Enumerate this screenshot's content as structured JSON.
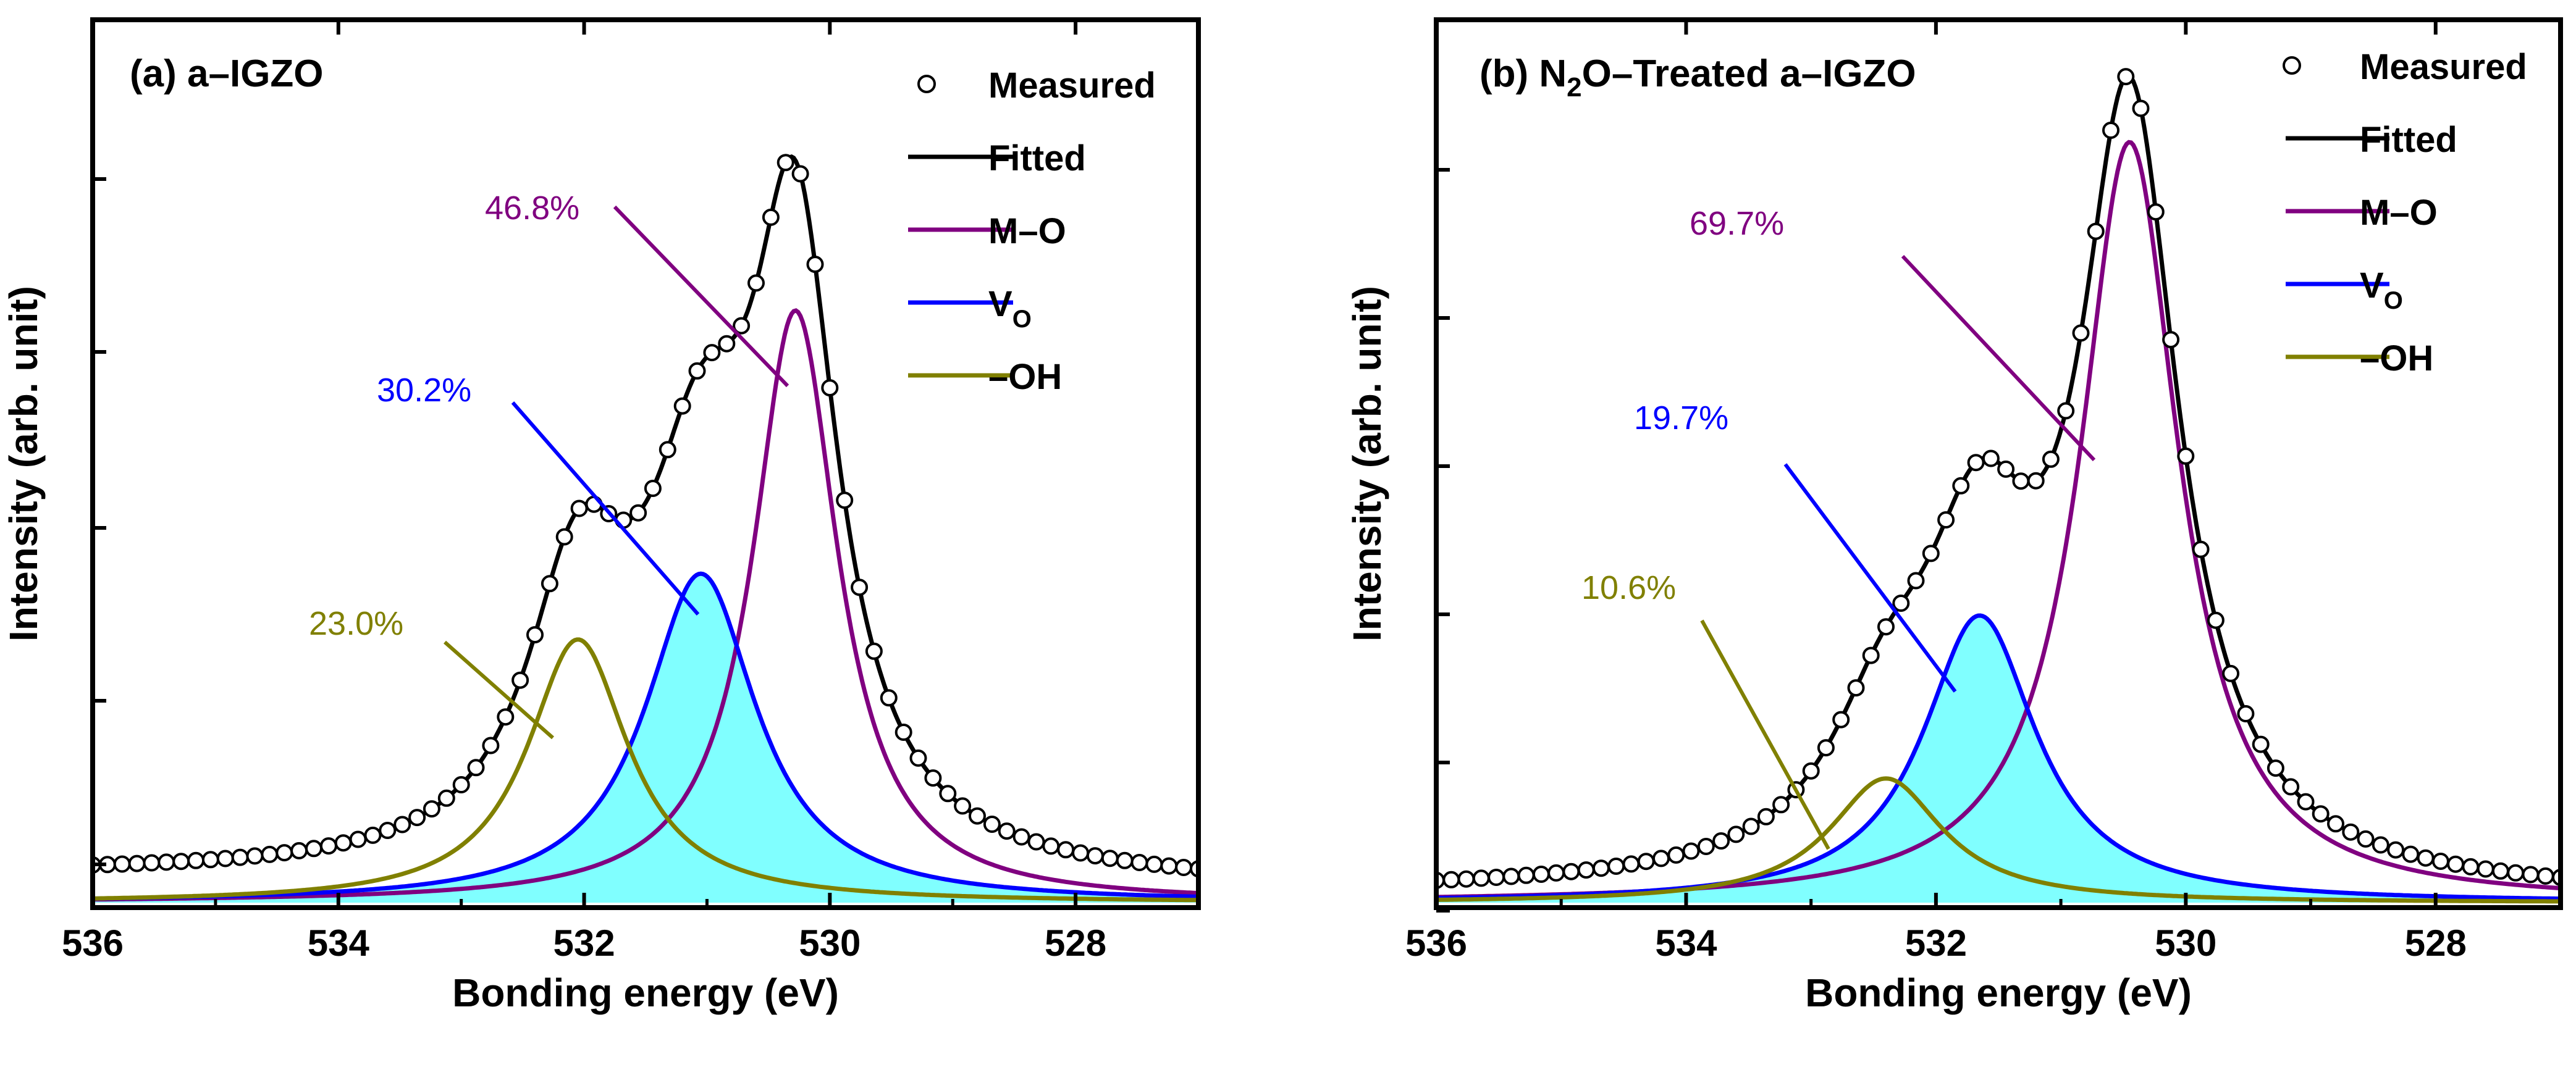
{
  "chart_data": [
    {
      "type": "line",
      "panel": "a",
      "title": "(a) a–IGZO",
      "xlabel": "Bonding energy (eV)",
      "ylabel": "Intensity (arb. unit)",
      "xlim": [
        536,
        527
      ],
      "ylim": [
        0,
        1.0
      ],
      "x_ticks": [
        536,
        534,
        532,
        530,
        528
      ],
      "x_tick_labels": [
        "536",
        "534",
        "532",
        "530",
        "528"
      ],
      "legend": [
        {
          "key": "measured",
          "label": "Measured",
          "marker": "open-circle",
          "color": "#000000"
        },
        {
          "key": "fitted",
          "label": "Fitted",
          "color": "#000000"
        },
        {
          "key": "mo",
          "label": "M–O",
          "color": "#800080"
        },
        {
          "key": "vo",
          "label": "V",
          "sub": "O",
          "color": "#0000ff"
        },
        {
          "key": "oh",
          "label": "–OH",
          "color": "#808000"
        }
      ],
      "components": [
        {
          "key": "mo",
          "name": "M–O",
          "center": 530.28,
          "amplitude": 0.72,
          "width": 0.42,
          "color": "#800080",
          "fill": "",
          "percent": "46.8%"
        },
        {
          "key": "vo",
          "name": "V_O",
          "center": 531.05,
          "amplitude": 0.4,
          "width": 0.55,
          "color": "#0000ff",
          "fill": "#80ffff",
          "percent": "30.2%"
        },
        {
          "key": "oh",
          "name": "–OH",
          "center": 532.05,
          "amplitude": 0.32,
          "width": 0.5,
          "color": "#808000",
          "fill": "",
          "percent": "23.0%"
        }
      ],
      "baseline": 0.032,
      "measured_step": 0.12
    },
    {
      "type": "line",
      "panel": "b",
      "title": "(b) N₂O–Treated a–IGZO",
      "title_parts": [
        "(b) N",
        "2",
        "O–Treated a–IGZO"
      ],
      "xlabel": "Bonding energy (eV)",
      "ylabel": "Intensity (arb. unit)",
      "xlim": [
        536,
        527
      ],
      "ylim": [
        0,
        1.0
      ],
      "x_ticks": [
        536,
        534,
        532,
        530,
        528
      ],
      "x_tick_labels": [
        "536",
        "534",
        "532",
        "530",
        "528"
      ],
      "legend": [
        {
          "key": "measured",
          "label": "Measured",
          "marker": "open-circle",
          "color": "#000000"
        },
        {
          "key": "fitted",
          "label": "Fitted",
          "color": "#000000"
        },
        {
          "key": "mo",
          "label": "M–O",
          "color": "#800080"
        },
        {
          "key": "vo",
          "label": "V",
          "sub": "O",
          "color": "#0000ff"
        },
        {
          "key": "oh",
          "label": "–OH",
          "color": "#808000"
        }
      ],
      "components": [
        {
          "key": "mo",
          "name": "M–O",
          "center": 530.45,
          "amplitude": 0.98,
          "width": 0.48,
          "color": "#800080",
          "fill": "",
          "percent": "69.7%"
        },
        {
          "key": "vo",
          "name": "V_O",
          "center": 531.65,
          "amplitude": 0.37,
          "width": 0.55,
          "color": "#0000ff",
          "fill": "#80ffff",
          "percent": "19.7%"
        },
        {
          "key": "oh",
          "name": "–OH",
          "center": 532.4,
          "amplitude": 0.16,
          "width": 0.55,
          "color": "#808000",
          "fill": "",
          "percent": "10.6%"
        }
      ],
      "baseline": 0.012,
      "measured_step": 0.12
    }
  ]
}
